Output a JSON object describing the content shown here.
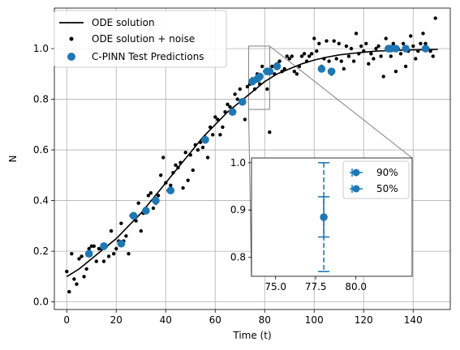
{
  "chart_data": [
    {
      "type": "scatter",
      "xlabel": "Time (t)",
      "ylabel": "N",
      "xlim": [
        -5,
        155
      ],
      "ylim": [
        -0.03,
        1.16
      ],
      "xticks": [
        0,
        20,
        40,
        60,
        80,
        100,
        120,
        140
      ],
      "yticks": [
        0.0,
        0.2,
        0.4,
        0.6,
        0.8,
        1.0
      ],
      "xtick_labels": [
        "0",
        "20",
        "40",
        "60",
        "80",
        "100",
        "120",
        "140"
      ],
      "ytick_labels": [
        "0.0",
        "0.2",
        "0.4",
        "0.6",
        "0.8",
        "1.0"
      ],
      "grid": true,
      "legend_position": "upper-left",
      "ode_curve": {
        "x": [
          0,
          5,
          10,
          15,
          20,
          25,
          30,
          35,
          40,
          45,
          50,
          55,
          60,
          65,
          70,
          75,
          80,
          85,
          90,
          95,
          100,
          105,
          110,
          115,
          120,
          125,
          130,
          135,
          140,
          145,
          150
        ],
        "y": [
          0.1,
          0.13,
          0.17,
          0.21,
          0.25,
          0.3,
          0.35,
          0.41,
          0.47,
          0.53,
          0.59,
          0.65,
          0.7,
          0.75,
          0.79,
          0.83,
          0.87,
          0.9,
          0.92,
          0.94,
          0.955,
          0.966,
          0.975,
          0.981,
          0.986,
          0.99,
          0.992,
          0.994,
          0.995,
          0.996,
          0.997
        ]
      },
      "noise_points": {
        "x": [
          0,
          1,
          2,
          3,
          4,
          5,
          6,
          7,
          8,
          9,
          10,
          11,
          12,
          13,
          14,
          15,
          16,
          17,
          18,
          19,
          20,
          21,
          22,
          23,
          24,
          25,
          26,
          27,
          28,
          29,
          30,
          31,
          32,
          33,
          34,
          35,
          36,
          37,
          38,
          39,
          40,
          41,
          42,
          43,
          44,
          45,
          46,
          47,
          48,
          49,
          50,
          51,
          52,
          53,
          54,
          55,
          56,
          57,
          58,
          59,
          60,
          61,
          62,
          63,
          64,
          65,
          66,
          67,
          68,
          69,
          70,
          71,
          72,
          73,
          74,
          75,
          76,
          77,
          78,
          79,
          80,
          81,
          82,
          83,
          84,
          85,
          86,
          87,
          88,
          89,
          90,
          91,
          92,
          93,
          94,
          95,
          96,
          97,
          98,
          99,
          100,
          101,
          102,
          103,
          104,
          105,
          106,
          107,
          108,
          109,
          110,
          111,
          112,
          113,
          114,
          115,
          116,
          117,
          118,
          119,
          120,
          121,
          122,
          123,
          124,
          125,
          126,
          127,
          128,
          129,
          130,
          131,
          132,
          133,
          134,
          135,
          136,
          137,
          138,
          139,
          140,
          141,
          142,
          143,
          144,
          145,
          146,
          147,
          148,
          149
        ],
        "y": [
          0.12,
          0.04,
          0.19,
          0.09,
          0.07,
          0.17,
          0.18,
          0.1,
          0.13,
          0.21,
          0.22,
          0.22,
          0.16,
          0.21,
          0.21,
          0.16,
          0.22,
          0.18,
          0.28,
          0.19,
          0.21,
          0.24,
          0.31,
          0.24,
          0.26,
          0.19,
          0.34,
          0.34,
          0.32,
          0.39,
          0.28,
          0.35,
          0.37,
          0.42,
          0.43,
          0.37,
          0.39,
          0.42,
          0.5,
          0.57,
          0.47,
          0.44,
          0.46,
          0.51,
          0.54,
          0.53,
          0.55,
          0.45,
          0.59,
          0.48,
          0.58,
          0.52,
          0.62,
          0.6,
          0.63,
          0.61,
          0.65,
          0.57,
          0.69,
          0.66,
          0.73,
          0.72,
          0.66,
          0.69,
          0.75,
          0.78,
          0.77,
          0.76,
          0.82,
          0.8,
          0.84,
          0.79,
          0.72,
          0.85,
          0.86,
          0.88,
          0.84,
          0.9,
          0.86,
          0.93,
          0.91,
          0.84,
          0.67,
          0.93,
          0.9,
          0.94,
          0.95,
          0.91,
          0.92,
          0.97,
          0.96,
          0.97,
          0.91,
          0.9,
          0.93,
          0.97,
          0.98,
          0.95,
          0.97,
          0.98,
          1.04,
          0.99,
          1.02,
          0.93,
          0.96,
          1.03,
          0.95,
          0.9,
          1.03,
          0.96,
          1.02,
          0.95,
          0.92,
          1.01,
          0.97,
          1.0,
          0.95,
          1.06,
          0.98,
          1.01,
          0.99,
          1.02,
          0.94,
          0.98,
          0.96,
          1.0,
          1.01,
          0.97,
          0.89,
          1.04,
          1.0,
          0.97,
          1.02,
          0.91,
          1.0,
          0.98,
          1.02,
          0.93,
          0.99,
          1.05,
          1.01,
          0.96,
          0.99,
          1.02,
          1.06,
          1.02,
          1.0,
          0.99,
          0.97,
          1.12
        ]
      },
      "predictions": {
        "x": [
          9,
          15,
          22,
          27,
          32,
          36,
          42,
          56,
          67,
          71,
          75,
          77,
          78,
          81,
          82,
          85,
          103,
          107,
          130,
          131,
          133,
          137,
          145
        ],
        "y": [
          0.19,
          0.22,
          0.23,
          0.34,
          0.36,
          0.4,
          0.44,
          0.64,
          0.75,
          0.79,
          0.87,
          0.88,
          0.89,
          0.91,
          0.91,
          0.93,
          0.92,
          0.91,
          1.0,
          1.0,
          1.0,
          1.0,
          1.0
        ]
      },
      "zoom_box": {
        "x": [
          73.5,
          82
        ],
        "y": [
          0.76,
          1.01
        ]
      },
      "legend": [
        "ODE solution",
        "ODE solution + noise",
        "C-PINN Test Predictions"
      ]
    },
    {
      "type": "errorbar",
      "xlim": [
        73.5,
        83.5
      ],
      "ylim": [
        0.76,
        1.01
      ],
      "xticks": [
        75.0,
        77.5,
        80.0
      ],
      "yticks": [
        0.8,
        0.9,
        1.0
      ],
      "xtick_labels": [
        "75.0",
        "77.5",
        "80.0"
      ],
      "ytick_labels": [
        "0.8",
        "0.9",
        "1.0"
      ],
      "point": {
        "x": 78.0,
        "y": 0.885
      },
      "interval_90": [
        0.77,
        1.0
      ],
      "interval_50": [
        0.843,
        0.928
      ],
      "legend": [
        "90%",
        "50%"
      ],
      "legend_position": "upper-right"
    }
  ],
  "colors": {
    "pred": "#1f77b4",
    "line": "#000000",
    "grid": "#b0b0b0",
    "zoom": "#808080"
  }
}
